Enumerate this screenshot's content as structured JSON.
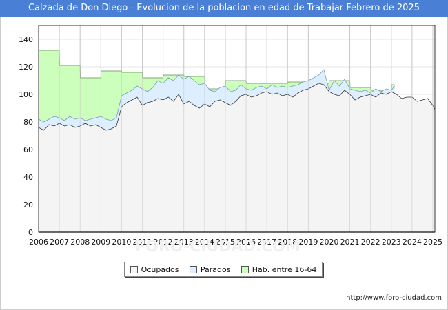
{
  "title": "Calzada de Don Diego - Evolucion de la poblacion en edad de Trabajar Febrero de 2025",
  "source_url": "http://www.foro-ciudad.com",
  "watermark": "FORO-CIUDAD.COM",
  "chart_data": {
    "type": "area",
    "x_ticks": [
      "2006",
      "2007",
      "2008",
      "2009",
      "2010",
      "2011",
      "2012",
      "2013",
      "2014",
      "2015",
      "2016",
      "2017",
      "2018",
      "2019",
      "2020",
      "2021",
      "2022",
      "2023",
      "2024",
      "2025"
    ],
    "y_ticks": [
      0,
      20,
      40,
      60,
      80,
      100,
      120,
      140
    ],
    "ylim": [
      0,
      150
    ],
    "xlim": [
      2006,
      2025.1
    ],
    "grid": true,
    "legend_position": "bottom-center",
    "series": [
      {
        "name": "Hab. entre 16-64",
        "color": "#ccffbb",
        "x": [
          2006.0,
          2007.0,
          2007.01,
          2008.0,
          2008.01,
          2009.0,
          2009.01,
          2010.0,
          2010.01,
          2011.0,
          2011.01,
          2012.0,
          2012.01,
          2013.0,
          2013.01,
          2014.0,
          2014.01,
          2015.0,
          2015.01,
          2016.0,
          2016.01,
          2017.0,
          2017.01,
          2018.0,
          2018.01,
          2019.0,
          2019.01,
          2020.0,
          2020.01,
          2021.0,
          2021.01,
          2022.0,
          2022.01,
          2023.0,
          2023.01,
          2023.16
        ],
        "values": [
          132,
          132,
          121,
          121,
          112,
          112,
          117,
          117,
          116,
          116,
          112,
          112,
          114,
          114,
          113,
          113,
          104,
          104,
          110,
          110,
          108,
          108,
          108,
          108,
          109,
          109,
          108,
          108,
          110,
          110,
          105,
          105,
          103,
          103,
          107,
          107
        ]
      },
      {
        "name": "Parados",
        "color": "#ddeeff",
        "x": [
          2006.0,
          2006.25,
          2006.5,
          2006.75,
          2007.0,
          2007.25,
          2007.5,
          2007.75,
          2008.0,
          2008.25,
          2008.5,
          2008.75,
          2009.0,
          2009.25,
          2009.5,
          2009.75,
          2010.0,
          2010.25,
          2010.5,
          2010.75,
          2011.0,
          2011.25,
          2011.5,
          2011.75,
          2012.0,
          2012.25,
          2012.5,
          2012.75,
          2013.0,
          2013.25,
          2013.5,
          2013.75,
          2014.0,
          2014.25,
          2014.5,
          2014.75,
          2015.0,
          2015.25,
          2015.5,
          2015.75,
          2016.0,
          2016.25,
          2016.5,
          2016.75,
          2017.0,
          2017.25,
          2017.5,
          2017.75,
          2018.0,
          2018.25,
          2018.5,
          2018.75,
          2019.0,
          2019.25,
          2019.5,
          2019.75,
          2020.0,
          2020.25,
          2020.5,
          2020.75,
          2021.0,
          2021.25,
          2021.5,
          2021.75,
          2022.0,
          2022.25,
          2022.5,
          2022.75,
          2023.0,
          2023.16
        ],
        "values": [
          82,
          80,
          82,
          84,
          83,
          81,
          84,
          82,
          83,
          81,
          82,
          83,
          84,
          82,
          81,
          83,
          99,
          101,
          103,
          106,
          104,
          102,
          105,
          110,
          108,
          112,
          110,
          114,
          111,
          113,
          110,
          107,
          108,
          103,
          102,
          105,
          106,
          102,
          103,
          107,
          104,
          103,
          105,
          106,
          104,
          107,
          105,
          106,
          105,
          106,
          107,
          109,
          110,
          112,
          114,
          118,
          103,
          110,
          106,
          111,
          104,
          103,
          102,
          103,
          101,
          104,
          102,
          104,
          103,
          106
        ]
      },
      {
        "name": "Ocupados",
        "color": "#f4f4f4",
        "x": [
          2006.0,
          2006.25,
          2006.5,
          2006.75,
          2007.0,
          2007.25,
          2007.5,
          2007.75,
          2008.0,
          2008.25,
          2008.5,
          2008.75,
          2009.0,
          2009.25,
          2009.5,
          2009.75,
          2010.0,
          2010.25,
          2010.5,
          2010.75,
          2011.0,
          2011.25,
          2011.5,
          2011.75,
          2012.0,
          2012.25,
          2012.5,
          2012.75,
          2013.0,
          2013.25,
          2013.5,
          2013.75,
          2014.0,
          2014.25,
          2014.5,
          2014.75,
          2015.0,
          2015.25,
          2015.5,
          2015.75,
          2016.0,
          2016.25,
          2016.5,
          2016.75,
          2017.0,
          2017.25,
          2017.5,
          2017.75,
          2018.0,
          2018.25,
          2018.5,
          2018.75,
          2019.0,
          2019.25,
          2019.5,
          2019.75,
          2020.0,
          2020.25,
          2020.5,
          2020.75,
          2021.0,
          2021.25,
          2021.5,
          2021.75,
          2022.0,
          2022.25,
          2022.5,
          2022.75,
          2023.0,
          2023.25,
          2023.5,
          2023.75,
          2024.0,
          2024.25,
          2024.5,
          2024.75,
          2025.0,
          2025.1
        ],
        "values": [
          76,
          74,
          78,
          77,
          79,
          77,
          78,
          76,
          77,
          79,
          77,
          78,
          76,
          74,
          75,
          77,
          91,
          94,
          96,
          98,
          92,
          94,
          95,
          97,
          96,
          98,
          95,
          100,
          93,
          95,
          92,
          90,
          93,
          91,
          95,
          96,
          94,
          92,
          95,
          99,
          100,
          98,
          99,
          101,
          102,
          100,
          101,
          99,
          100,
          98,
          101,
          103,
          104,
          106,
          108,
          107,
          102,
          100,
          99,
          103,
          100,
          96,
          98,
          99,
          100,
          98,
          101,
          100,
          102,
          100,
          97,
          98,
          98,
          95,
          96,
          97,
          92,
          89
        ]
      }
    ]
  },
  "legend": [
    {
      "label": "Ocupados",
      "color": "#f4f4f4"
    },
    {
      "label": "Parados",
      "color": "#ddeeff"
    },
    {
      "label": "Hab. entre 16-64",
      "color": "#ccffbb"
    }
  ]
}
